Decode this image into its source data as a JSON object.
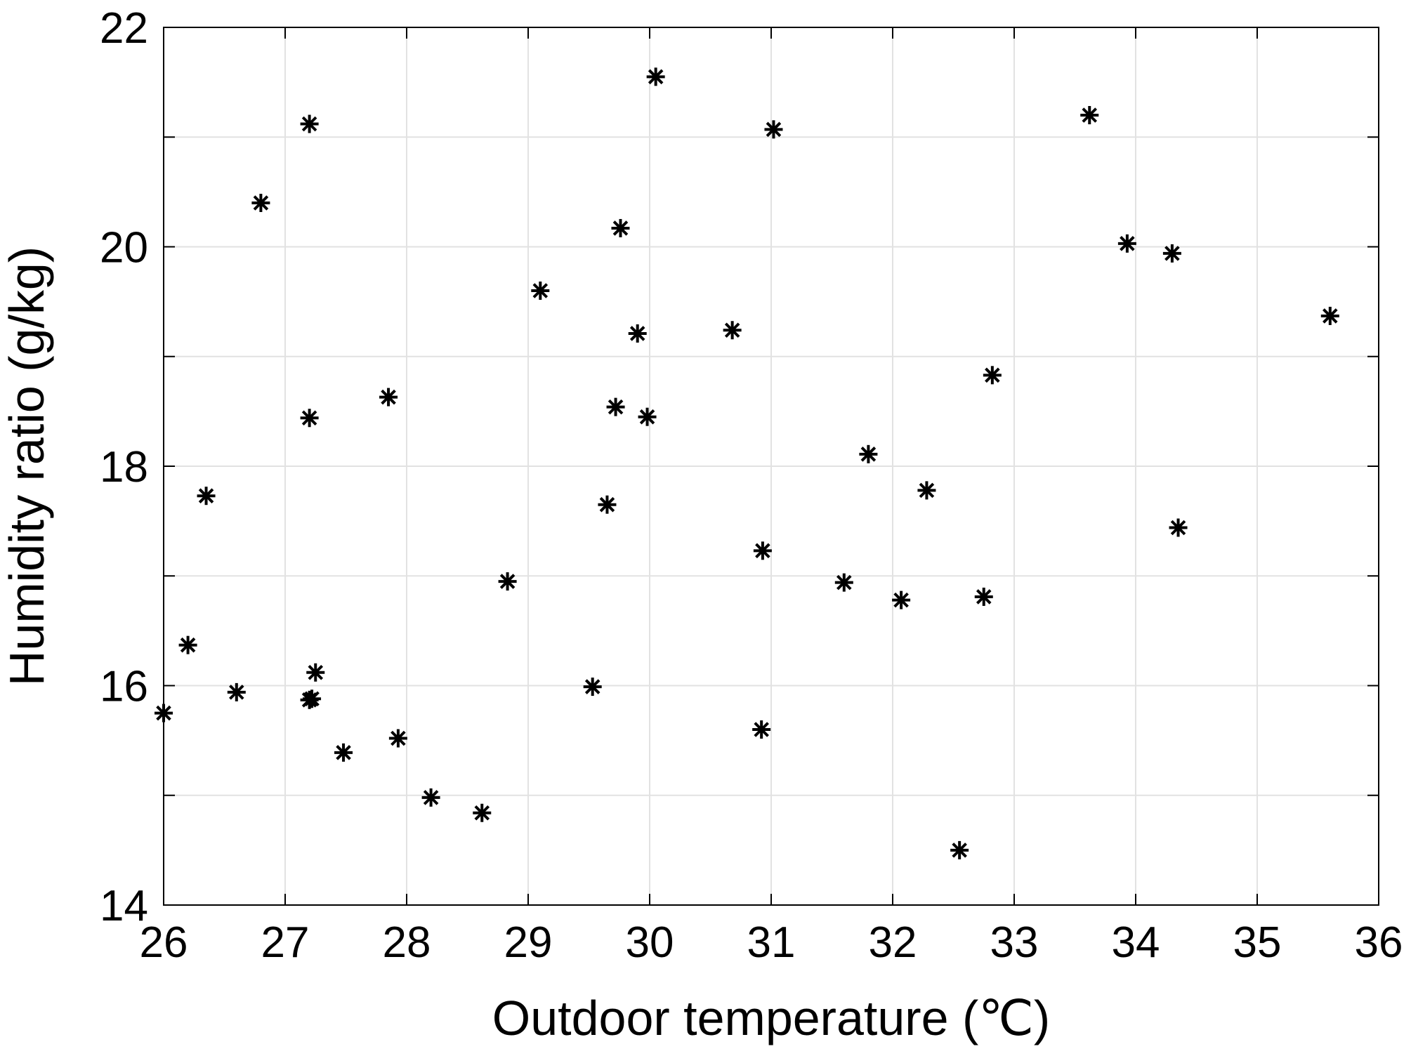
{
  "chart_data": {
    "type": "scatter",
    "title": "",
    "xlabel": "Outdoor temperature (℃)",
    "ylabel": "Humidity ratio (g/kg)",
    "xlim": [
      26,
      36
    ],
    "ylim": [
      14,
      22
    ],
    "xticks": [
      26,
      27,
      28,
      29,
      30,
      31,
      32,
      33,
      34,
      35,
      36
    ],
    "yticks": [
      14,
      16,
      18,
      20,
      22
    ],
    "y_minor_grid": [
      15,
      17,
      19,
      21
    ],
    "grid": true,
    "marker": "asterisk",
    "colors": {
      "marker": "#000000",
      "axes": "#000000",
      "grid": "#e2e2e2",
      "background": "#ffffff"
    },
    "series": [
      {
        "x": [
          26.0,
          26.2,
          26.35,
          26.6,
          26.8,
          27.2,
          27.2,
          27.25,
          27.2,
          27.22,
          27.48,
          27.85,
          27.93,
          28.2,
          28.62,
          28.83,
          29.1,
          29.53,
          29.65,
          29.72,
          29.76,
          29.9,
          29.98,
          30.05,
          30.68,
          30.92,
          30.93,
          31.02,
          31.6,
          31.8,
          32.07,
          32.28,
          32.55,
          32.75,
          32.82,
          33.62,
          33.93,
          34.3,
          34.35,
          35.6
        ],
        "y": [
          15.75,
          16.37,
          17.73,
          15.94,
          20.4,
          21.12,
          18.44,
          16.12,
          15.87,
          15.88,
          15.39,
          18.63,
          15.52,
          14.98,
          14.84,
          16.95,
          19.6,
          15.99,
          17.65,
          18.54,
          20.17,
          19.21,
          18.45,
          21.55,
          19.24,
          15.6,
          17.23,
          21.07,
          16.94,
          18.11,
          16.78,
          17.78,
          14.5,
          16.81,
          18.83,
          21.2,
          20.03,
          19.94,
          17.44,
          19.37
        ]
      }
    ]
  }
}
